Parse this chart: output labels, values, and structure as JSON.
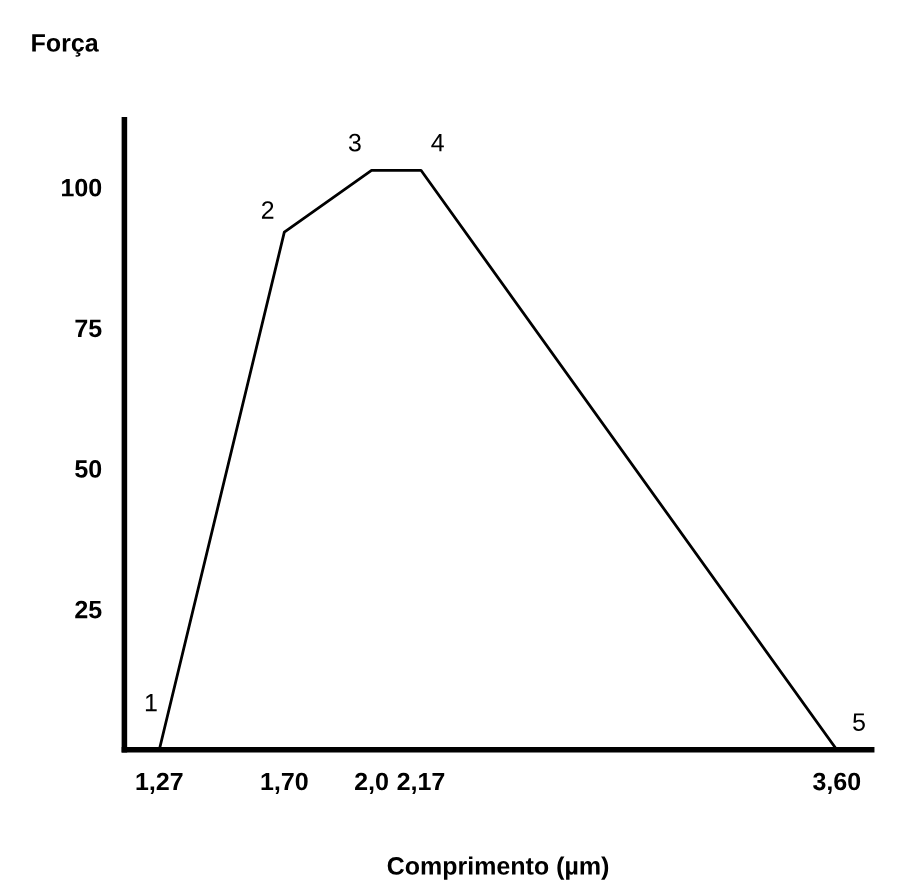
{
  "chart_data": {
    "type": "line",
    "ylabel": "Força",
    "xlabel": "Comprimento (µm)",
    "x": [
      1.27,
      1.7,
      2.0,
      2.17,
      3.6
    ],
    "values": [
      0,
      92,
      103,
      103,
      0
    ],
    "color": "#000000",
    "xlim": [
      1.15,
      3.72
    ],
    "ylim": [
      0,
      112
    ],
    "xticks": [
      {
        "value": 1.27,
        "label": "1,27"
      },
      {
        "value": 1.7,
        "label": "1,70"
      },
      {
        "value": 2.0,
        "label": "2,0"
      },
      {
        "value": 2.17,
        "label": "2,17"
      },
      {
        "value": 3.6,
        "label": "3,60"
      }
    ],
    "yticks": [
      25,
      50,
      75,
      100
    ],
    "grid": false,
    "legend": false,
    "marker": "none",
    "line_style": "solid",
    "annotations": [
      {
        "text": "1",
        "x": 1.27,
        "y": 0
      },
      {
        "text": "2",
        "x": 1.7,
        "y": 92
      },
      {
        "text": "3",
        "x": 2.0,
        "y": 103
      },
      {
        "text": "4",
        "x": 2.17,
        "y": 103
      },
      {
        "text": "5",
        "x": 3.6,
        "y": 0
      }
    ]
  }
}
